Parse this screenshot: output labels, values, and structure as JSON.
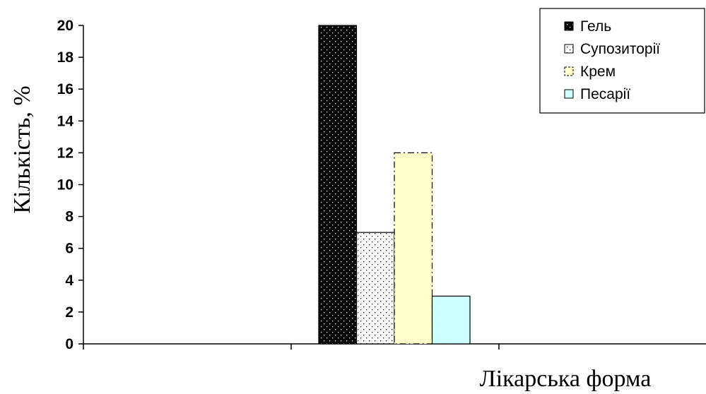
{
  "chart_data": {
    "type": "bar",
    "categories": [
      ""
    ],
    "series": [
      {
        "name": "Гель",
        "values": [
          20
        ],
        "color": "#000000",
        "pattern": "dots-white-on-black",
        "border": "solid"
      },
      {
        "name": "Супозиторії",
        "values": [
          7
        ],
        "color": "#ffffff",
        "pattern": "dots-black-on-white",
        "border": "solid"
      },
      {
        "name": "Крем",
        "values": [
          12
        ],
        "color": "#ffffcc",
        "pattern": "none",
        "border": "dash-dot"
      },
      {
        "name": "Песарії",
        "values": [
          3
        ],
        "color": "#ccffff",
        "pattern": "none",
        "border": "solid"
      }
    ],
    "title": "",
    "xlabel": "Лікарська форма",
    "ylabel": "Кількість, %",
    "ylim": [
      0,
      20
    ],
    "yticks": [
      0,
      2,
      4,
      6,
      8,
      10,
      12,
      14,
      16,
      18,
      20
    ],
    "grid": false,
    "legend_position": "top-right"
  }
}
